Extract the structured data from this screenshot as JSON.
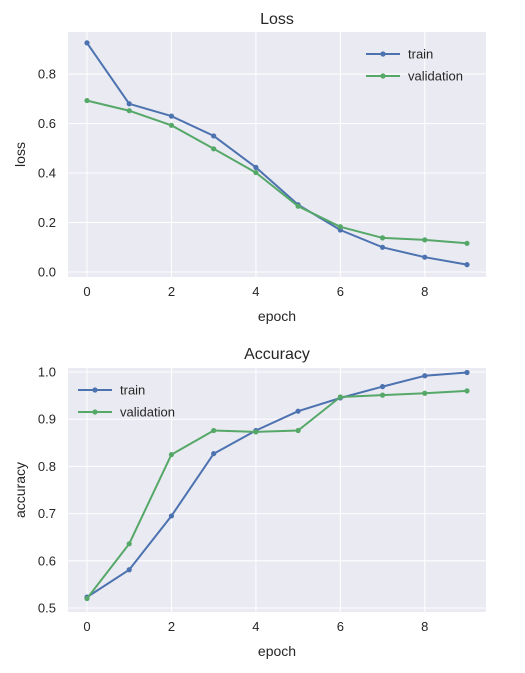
{
  "colors": {
    "train": "#4c72b0",
    "validation": "#55a868",
    "plot_bg": "#eaeaf2",
    "grid": "#ffffff"
  },
  "chart_data": [
    {
      "type": "line",
      "title": "Loss",
      "xlabel": "epoch",
      "ylabel": "loss",
      "x": [
        0,
        1,
        2,
        3,
        4,
        5,
        6,
        7,
        8,
        9
      ],
      "xlim": [
        -0.45,
        9.45
      ],
      "ylim": [
        -0.02,
        0.97
      ],
      "xticks": [
        0,
        2,
        4,
        6,
        8
      ],
      "yticks": [
        0.0,
        0.2,
        0.4,
        0.6,
        0.8
      ],
      "xtick_labels": [
        "0",
        "2",
        "4",
        "6",
        "8"
      ],
      "ytick_labels": [
        "0.0",
        "0.2",
        "0.4",
        "0.6",
        "0.8"
      ],
      "grid": true,
      "legend_position": "top-right",
      "series": [
        {
          "name": "train",
          "color": "#4c72b0",
          "values": [
            0.926,
            0.68,
            0.63,
            0.55,
            0.423,
            0.272,
            0.17,
            0.1,
            0.06,
            0.03
          ]
        },
        {
          "name": "validation",
          "color": "#55a868",
          "values": [
            0.693,
            0.652,
            0.593,
            0.498,
            0.402,
            0.266,
            0.183,
            0.138,
            0.13,
            0.116
          ]
        }
      ]
    },
    {
      "type": "line",
      "title": "Accuracy",
      "xlabel": "epoch",
      "ylabel": "accuracy",
      "x": [
        0,
        1,
        2,
        3,
        4,
        5,
        6,
        7,
        8,
        9
      ],
      "xlim": [
        -0.45,
        9.45
      ],
      "ylim": [
        0.4915,
        1.0085
      ],
      "xticks": [
        0,
        2,
        4,
        6,
        8
      ],
      "yticks": [
        0.5,
        0.6,
        0.7,
        0.8,
        0.9,
        1.0
      ],
      "xtick_labels": [
        "0",
        "2",
        "4",
        "6",
        "8"
      ],
      "ytick_labels": [
        "0.5",
        "0.6",
        "0.7",
        "0.8",
        "0.9",
        "1.0"
      ],
      "grid": true,
      "legend_position": "top-left",
      "series": [
        {
          "name": "train",
          "color": "#4c72b0",
          "values": [
            0.523,
            0.581,
            0.695,
            0.827,
            0.876,
            0.917,
            0.945,
            0.969,
            0.992,
            0.999
          ]
        },
        {
          "name": "validation",
          "color": "#55a868",
          "values": [
            0.52,
            0.636,
            0.825,
            0.876,
            0.873,
            0.876,
            0.947,
            0.951,
            0.955,
            0.96
          ]
        }
      ]
    }
  ]
}
